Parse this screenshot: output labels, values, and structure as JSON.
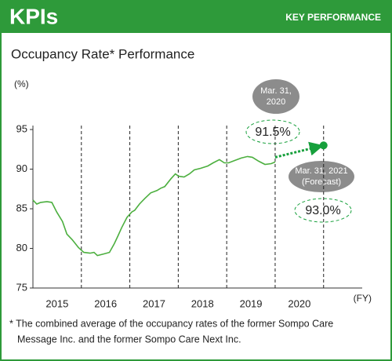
{
  "header": {
    "title": "KPIs",
    "tag": "KEY PERFORMANCE"
  },
  "chart_data": {
    "type": "line",
    "title": "Occupancy Rate* Performance",
    "y_label": "(%)",
    "x_label": "(FY)",
    "x": [
      2015.0,
      2015.08,
      2015.16,
      2015.29,
      2015.39,
      2015.49,
      2015.61,
      2015.7,
      2015.81,
      2015.94,
      2016.05,
      2016.18,
      2016.26,
      2016.33,
      2016.46,
      2016.58,
      2016.68,
      2016.75,
      2016.83,
      2016.94,
      2017.04,
      2017.1,
      2017.2,
      2017.31,
      2017.43,
      2017.56,
      2017.64,
      2017.72,
      2017.85,
      2017.94,
      2018.01,
      2018.12,
      2018.23,
      2018.33,
      2018.46,
      2018.61,
      2018.72,
      2018.85,
      2018.95,
      2019.04,
      2019.17,
      2019.3,
      2019.43,
      2019.53,
      2019.66,
      2019.79,
      2019.92,
      2020.0
    ],
    "values": [
      86.1,
      85.6,
      85.8,
      85.9,
      85.8,
      84.6,
      83.4,
      81.8,
      81.1,
      80.1,
      79.5,
      79.4,
      79.5,
      79.1,
      79.3,
      79.5,
      80.6,
      81.5,
      82.6,
      83.9,
      84.6,
      84.8,
      85.6,
      86.3,
      87.0,
      87.3,
      87.6,
      87.8,
      88.8,
      89.4,
      89.1,
      89.0,
      89.4,
      89.9,
      90.1,
      90.4,
      90.8,
      91.2,
      90.8,
      90.8,
      91.1,
      91.4,
      91.6,
      91.5,
      91.0,
      90.6,
      90.7,
      90.9
    ],
    "color": "#4caf3f",
    "forecast": {
      "x": [
        2020,
        2021
      ],
      "values": [
        91.5,
        93.0
      ],
      "value_labels": [
        "91.5%",
        "93.0%"
      ],
      "dates": [
        [
          "Mar. 31,",
          "2020"
        ],
        [
          "Mar. 31, 2021",
          "(Forecast)"
        ]
      ],
      "color": "#17a03c"
    },
    "xlim": [
      2015,
      2021.7
    ],
    "ylim": [
      75,
      95.5
    ],
    "yticks": [
      75,
      80,
      85,
      90,
      95
    ],
    "xticks": [
      {
        "value": 2015.5,
        "label": "2015"
      },
      {
        "value": 2016.5,
        "label": "2016"
      },
      {
        "value": 2017.5,
        "label": "2017"
      },
      {
        "value": 2018.5,
        "label": "2018"
      },
      {
        "value": 2019.5,
        "label": "2019"
      },
      {
        "value": 2020.5,
        "label": "2020"
      }
    ],
    "x_dividers": [
      2016,
      2017,
      2018,
      2019,
      2020,
      2021
    ]
  },
  "footnote": [
    "* The combined average of the occupancy rates of the former Sompo Care",
    "Message Inc. and the former Sompo Care Next Inc."
  ]
}
